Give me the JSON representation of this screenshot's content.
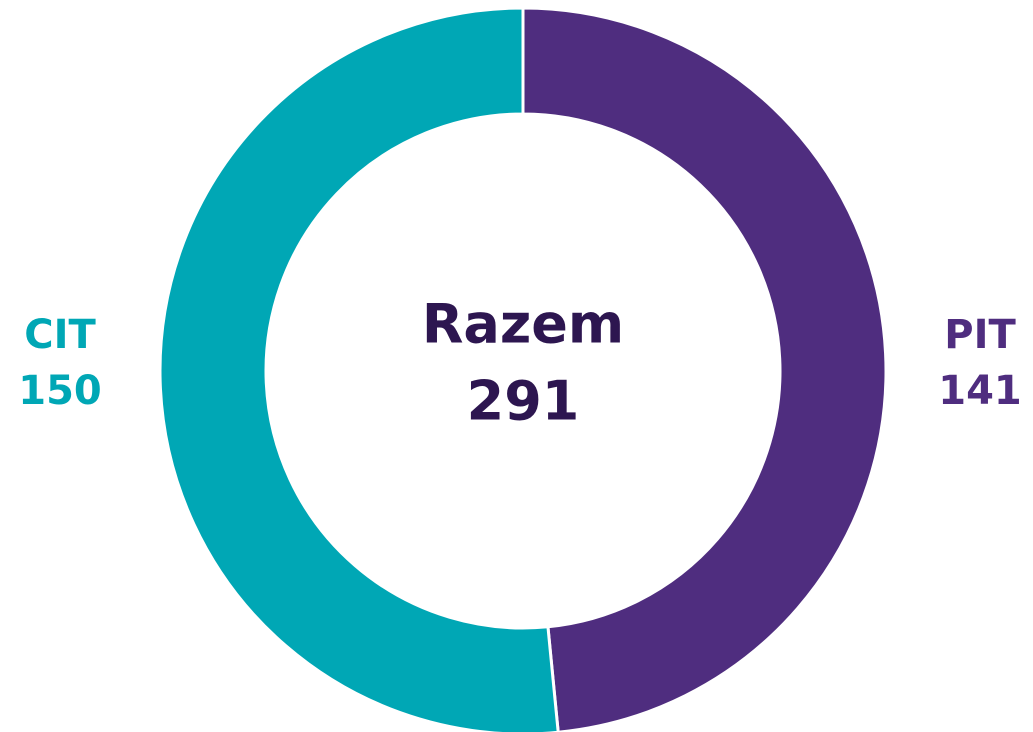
{
  "chart_data": {
    "type": "donut",
    "categories": [
      "PIT",
      "CIT"
    ],
    "values": [
      141,
      150
    ],
    "colors": [
      "#4f2d7f",
      "#00a7b5"
    ],
    "center_label": "Razem",
    "total": 291
  }
}
